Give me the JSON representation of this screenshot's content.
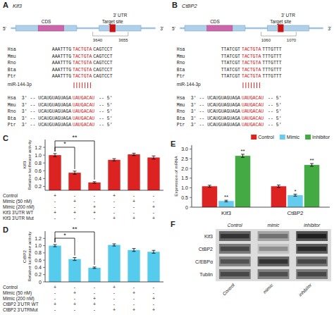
{
  "chart_data": [
    {
      "type": "diagram",
      "title": "A",
      "color": "#cc1111",
      "annotations": {
        "gene": "Klf3",
        "utr": "3' UTR",
        "cds": "CDS",
        "target": "Target site",
        "five_prime": "5'",
        "three_prime": "3'",
        "positions": [
          "3640",
          "3655"
        ],
        "mirna": "miR-144-3p",
        "target_rows": [
          [
            "Hsa",
            "AAATTTG",
            "TACTGTA",
            "CAGTCCT"
          ],
          [
            "Mmu",
            "AAATTTG",
            "TACTGTA",
            "CAGTCCT"
          ],
          [
            "Rno",
            "AAATTTG",
            "TACTGTA",
            "CAGTCCT"
          ],
          [
            "Bta",
            "AAATTTG",
            "TACTGTA",
            "CAGTCCT"
          ],
          [
            "Ptr",
            "AAATTTG",
            "TACTGTA",
            "CAGTCCT"
          ]
        ],
        "mirna_rows": [
          [
            "Hsa",
            "3' -- UCAUGUAGUAGA",
            "UAUGACAU",
            " -- 5'"
          ],
          [
            "Mmu",
            "3' -- UCAUGUAGUAGA",
            "UAUGACAU",
            " -- 5'"
          ],
          [
            "Rno",
            "3' -- UCAUGUAGUAGA",
            "UAUGACAU",
            " -- 5'"
          ],
          [
            "Bta",
            "3' -- UCAUGUAGUAGA",
            "UAUGACAU",
            " -- 5'"
          ],
          [
            "Ptr",
            "3' -- UCAUGUAGUAGA",
            "UAUGACAU",
            " -- 5'"
          ]
        ]
      }
    },
    {
      "type": "diagram",
      "title": "B",
      "color": "#cc1111",
      "annotations": {
        "gene": "CtBP2",
        "utr": "3' UTR",
        "cds": "CDS",
        "target": "Target site",
        "five_prime": "5'",
        "three_prime": "3'",
        "positions": [
          "1060",
          "1070"
        ],
        "mirna": "miR-144-3p",
        "target_rows": [
          [
            "Hsa",
            "TTATCGT",
            "TACTGTA",
            "TTTGTTT"
          ],
          [
            "Mmu",
            "TTATCGT",
            "TACTGTA",
            "TTTGTTT"
          ],
          [
            "Rno",
            "TTATCGT",
            "TACTGTA",
            "TTTGTTT"
          ],
          [
            "Bta",
            "TTATCGT",
            "TACTGTA",
            "TTTGTTT"
          ],
          [
            "Ptr",
            "TTATCGT",
            "TACTGTA",
            "TTTGTTT"
          ]
        ],
        "mirna_rows": [
          [
            "Hsa",
            "3' -- UCAUGUAGUAGA",
            "UAUGACAU",
            " -- 5'"
          ],
          [
            "Mmu",
            "3' -- UCAUGUAGUAGA",
            "UAUGACAU",
            " -- 5'"
          ],
          [
            "Rno",
            "3' -- UCAUGUAGUAGA",
            "UAUGACAU",
            " -- 5'"
          ],
          [
            "Bta",
            "3' -- UCAUGUAGUAGA",
            "UAUGACAU",
            " -- 5'"
          ],
          [
            "Ptr",
            "3' -- UCAUGUAGUAGA",
            "UAUGACAU",
            " -- 5'"
          ]
        ]
      }
    },
    {
      "type": "bar",
      "title": "C",
      "ylabel": "Klf3\nRelative luciferase activity",
      "values": [
        1.0,
        0.55,
        0.3,
        0.88,
        1.02,
        0.94
      ],
      "errors": [
        0.04,
        0.04,
        0.02,
        0.03,
        0.03,
        0.04
      ],
      "color": "#dd2222",
      "ylim": [
        0.1,
        1.4
      ],
      "yticks": [
        0.2,
        0.4,
        0.6,
        0.8,
        {
          "value": 1.0,
          "label": "1.0"
        },
        1.2
      ],
      "tick_labels": "y",
      "annotations": {
        "significance": [
          {
            "text": "*",
            "from": 0,
            "to": 1
          },
          {
            "text": "**",
            "from": 0,
            "to": 2
          }
        ],
        "conditions": [
          {
            "label": "Control",
            "marks": [
              "+",
              "-",
              "-",
              "+",
              "-",
              "-"
            ]
          },
          {
            "label": "Mimic (50 nM)",
            "marks": [
              "-",
              "+",
              "-",
              "-",
              "+",
              "-"
            ]
          },
          {
            "label": "Mimic (200 nM)",
            "marks": [
              "-",
              "-",
              "+",
              "-",
              "-",
              "+"
            ]
          },
          {
            "label": "Klf3 3'UTR WT",
            "marks": [
              "+",
              "+",
              "+",
              "-",
              "-",
              "-"
            ]
          },
          {
            "label": "Klf3 3'UTR Mut",
            "marks": [
              "-",
              "-",
              "-",
              "+",
              "+",
              "+"
            ]
          }
        ]
      }
    },
    {
      "type": "bar",
      "title": "D",
      "ylabel": "CtBP2\nRelative luciferase activity",
      "values": [
        1.0,
        0.63,
        0.39,
        1.02,
        0.88,
        0.83
      ],
      "errors": [
        0.03,
        0.04,
        0.02,
        0.03,
        0.04,
        0.04
      ],
      "color": "#55ccee",
      "ylim": [
        0,
        1.4
      ],
      "yticks": [
        0,
        0.2,
        0.4,
        0.6,
        0.8,
        {
          "value": 1.0,
          "label": "1.0"
        },
        1.2
      ],
      "tick_labels": "y",
      "annotations": {
        "significance": [
          {
            "text": "*",
            "from": 0,
            "to": 1
          },
          {
            "text": "**",
            "from": 0,
            "to": 2
          }
        ],
        "conditions": [
          {
            "label": "Control",
            "marks": [
              "+",
              "-",
              "-",
              "+",
              "-",
              "-"
            ]
          },
          {
            "label": "Mimic (50 nM)",
            "marks": [
              "-",
              "+",
              "-",
              "-",
              "+",
              "-"
            ]
          },
          {
            "label": "Mimic (200 nM)",
            "marks": [
              "-",
              "-",
              "+",
              "-",
              "-",
              "+"
            ]
          },
          {
            "label": "CtBP2 3'UTR WT",
            "marks": [
              "+",
              "+",
              "+",
              "-",
              "-",
              "-"
            ]
          },
          {
            "label": "CtBP2 3'UTRMut",
            "marks": [
              "-",
              "-",
              "-",
              "+",
              "+",
              "+"
            ]
          }
        ]
      }
    },
    {
      "type": "bar",
      "title": "E",
      "ylabel": "Expression of mRNA",
      "categories": [
        "Klf3",
        "CtBP2"
      ],
      "series": [
        {
          "name": "Control",
          "color": "#dd2222",
          "values": [
            1.08,
            1.08
          ],
          "errors": [
            0.05,
            0.06
          ]
        },
        {
          "name": "Mimic",
          "color": "#66ccee",
          "values": [
            0.32,
            0.62
          ],
          "errors": [
            0.04,
            0.05
          ]
        },
        {
          "name": "Inhibitor",
          "color": "#44aa44",
          "values": [
            2.65,
            2.18
          ],
          "errors": [
            0.08,
            0.07
          ]
        }
      ],
      "ylim": [
        0,
        3.2
      ],
      "yticks": [
        0,
        0.5,
        {
          "value": 1.0,
          "label": "1.0"
        },
        1.5,
        {
          "value": 2.0,
          "label": "2.0"
        },
        2.5,
        {
          "value": 3.0,
          "label": "3.0"
        }
      ],
      "legend": "upper right",
      "annotations": [
        {
          "text": "**",
          "series": 1,
          "category": 0
        },
        {
          "text": "**",
          "series": 2,
          "category": 0
        },
        {
          "text": "*",
          "series": 1,
          "category": 1
        },
        {
          "text": "**",
          "series": 2,
          "category": 1
        }
      ]
    },
    {
      "type": "heatmap",
      "title": "F",
      "categories": [
        "Control",
        "mimic",
        "inhibitor"
      ],
      "rows": [
        "Klf3",
        "CtBP2",
        "C/EBPα",
        "Tublin"
      ],
      "cells": [
        [
          0.75,
          0.45,
          0.85
        ],
        [
          0.65,
          0.3,
          0.8
        ],
        [
          0.6,
          0.75,
          0.65
        ],
        [
          0.65,
          0.62,
          0.65
        ]
      ]
    }
  ]
}
